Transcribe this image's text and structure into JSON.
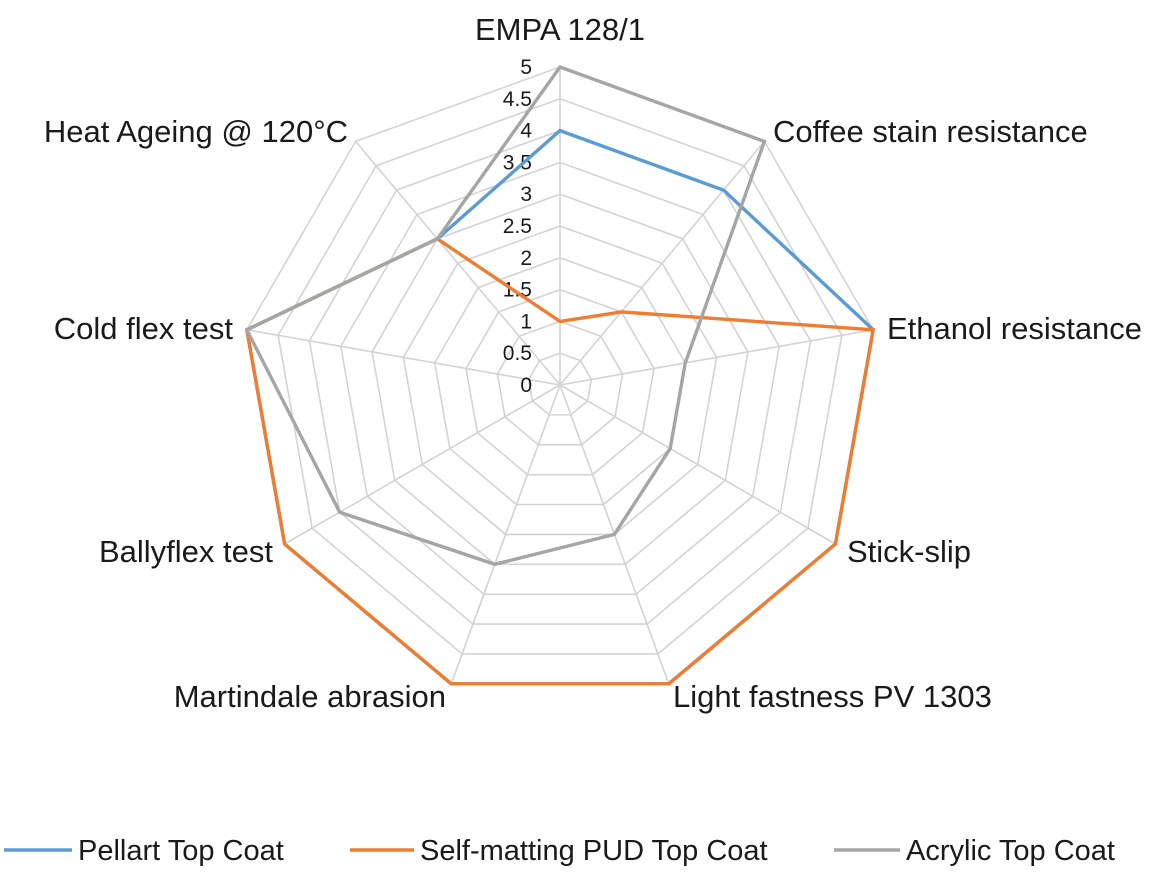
{
  "chart_data": {
    "type": "radar",
    "title": "",
    "axes": [
      "EMPA 128/1",
      "Coffee stain resistance",
      "Ethanol resistance",
      "Stick-slip",
      "Light fastness PV 1303",
      "Martindale abrasion",
      "Ballyflex test",
      "Cold flex test",
      "Heat Ageing @ 120°C"
    ],
    "ticks": [
      "0",
      "0.5",
      "1",
      "1.5",
      "2",
      "2.5",
      "3",
      "3.5",
      "4",
      "4.5",
      "5"
    ],
    "range": [
      0,
      5
    ],
    "grid": true,
    "legend_position": "bottom",
    "series": [
      {
        "name": "Pellart Top Coat",
        "color": "#5b9bd5",
        "values": [
          4,
          4,
          5,
          5,
          5,
          5,
          5,
          5,
          3
        ]
      },
      {
        "name": "Self-matting PUD Top Coat",
        "color": "#ed7d31",
        "values": [
          1,
          1.5,
          5,
          5,
          5,
          5,
          5,
          5,
          3
        ]
      },
      {
        "name": "Acrylic Top Coat",
        "color": "#a5a5a5",
        "values": [
          5,
          5,
          2,
          2,
          2.5,
          3,
          4,
          5,
          3
        ]
      }
    ]
  }
}
